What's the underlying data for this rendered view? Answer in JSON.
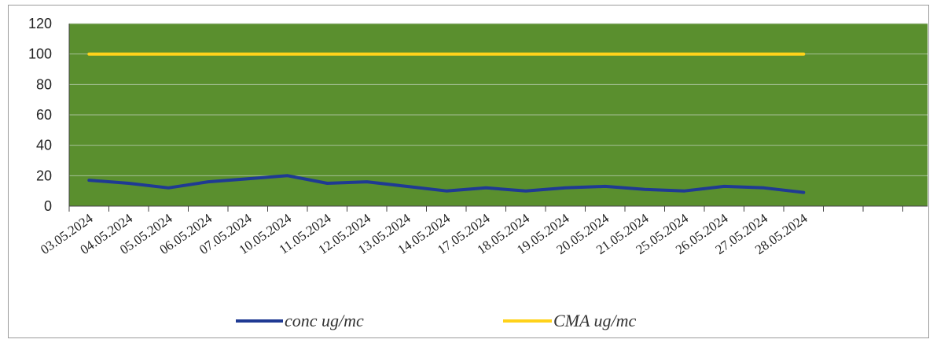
{
  "chart_data": {
    "type": "line",
    "categories": [
      "03.05.2024",
      "04.05.2024",
      "05.05.2024",
      "06.05.2024",
      "07.05.2024",
      "10.05.2024",
      "11.05.2024",
      "12.05.2024",
      "13.05.2024",
      "14.05.2024",
      "17.05.2024",
      "18.05.2024",
      "19.05.2024",
      "20.05.2024",
      "21.05.2024",
      "25.05.2024",
      "26.05.2024",
      "27.05.2024",
      "28.05.2024"
    ],
    "series": [
      {
        "name": "conc ug/mc",
        "color": "#1f3a93",
        "values": [
          17,
          15,
          12,
          16,
          18,
          20,
          15,
          16,
          13,
          10,
          12,
          10,
          12,
          13,
          11,
          10,
          13,
          12,
          9
        ]
      },
      {
        "name": "CMA ug/mc",
        "color": "#ffd21a",
        "values": [
          100,
          100,
          100,
          100,
          100,
          100,
          100,
          100,
          100,
          100,
          100,
          100,
          100,
          100,
          100,
          100,
          100,
          100,
          100
        ]
      }
    ],
    "yticks": [
      "0",
      "20",
      "40",
      "60",
      "80",
      "100",
      "120"
    ],
    "ylim": [
      0,
      120
    ],
    "grid": true,
    "plot_background": "#5a8f2e",
    "legend_position": "bottom"
  }
}
